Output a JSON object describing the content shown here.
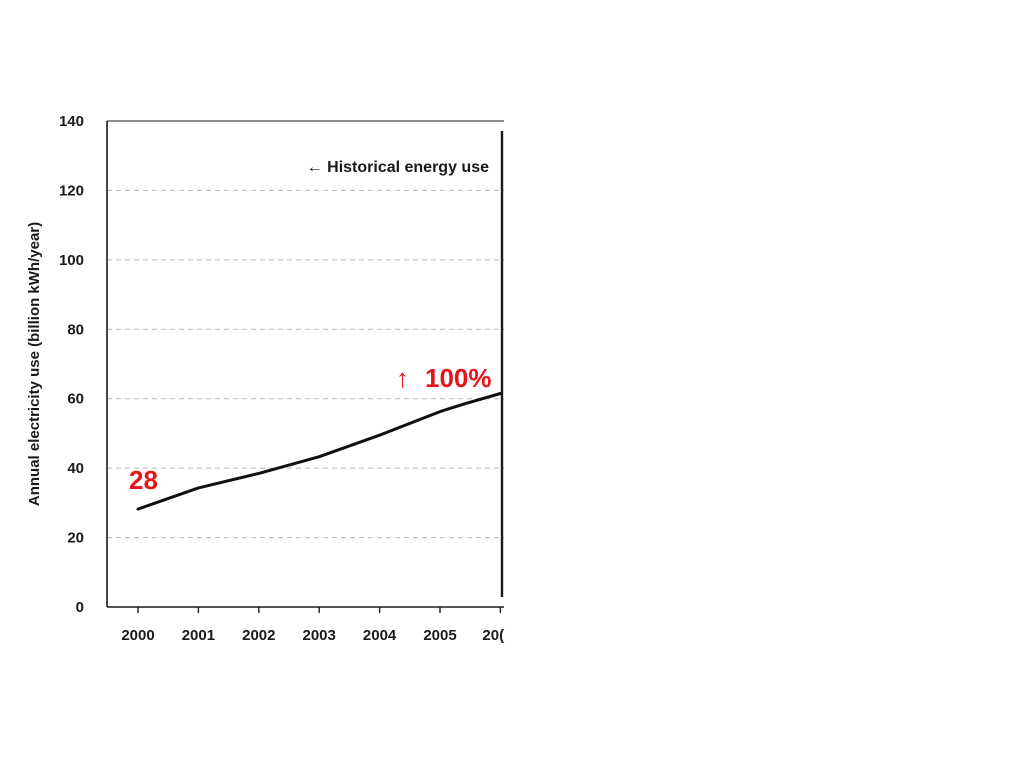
{
  "chart_data": {
    "type": "line",
    "ylabel": "Annual electricity use (billion kWh/year)",
    "xlabel": "",
    "title": "",
    "ylim": [
      0,
      140
    ],
    "yticks": [
      0,
      20,
      40,
      60,
      80,
      100,
      120,
      140
    ],
    "xticks": [
      "2000",
      "2001",
      "2002",
      "2003",
      "2004",
      "2005",
      "20("
    ],
    "grid": "horizontal-dashed",
    "series": [
      {
        "x": [
          2000,
          2001,
          2002,
          2003,
          2004,
          2005,
          2005.4,
          2006
        ],
        "values": [
          28.2,
          34.3,
          38.5,
          43.3,
          49.5,
          56.3,
          58.5,
          61.5
        ]
      }
    ],
    "annotations": {
      "historical": "← Historical energy use",
      "start_value": "28",
      "increase": "100%",
      "increase_arrow": "↑",
      "highlight_color": "#e8141b"
    }
  }
}
